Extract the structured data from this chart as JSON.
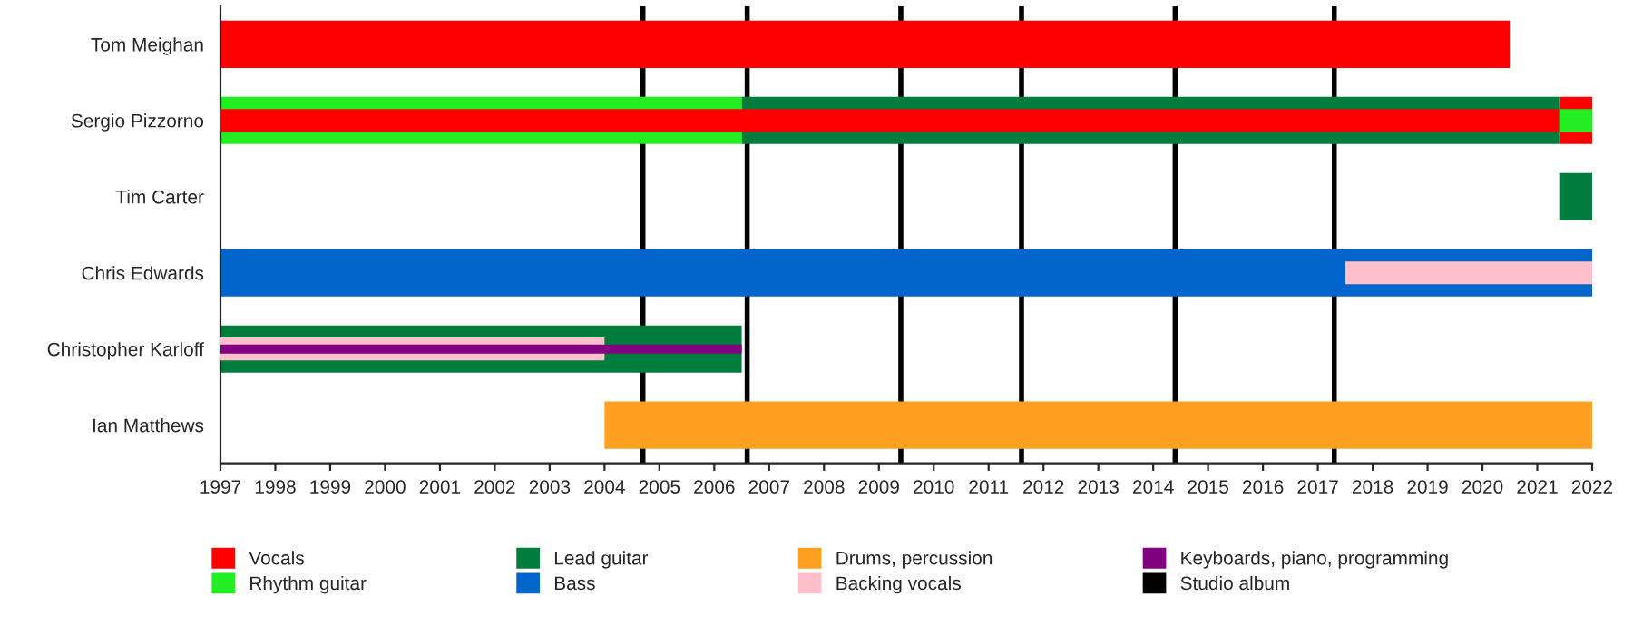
{
  "chart_data": {
    "type": "bar",
    "orientation": "horizontal",
    "categories": [
      "Tom Meighan",
      "Sergio Pizzorno",
      "Tim Carter",
      "Chris Edwards",
      "Christopher Karloff",
      "Ian Matthews"
    ],
    "series": [
      {
        "name": "Vocals",
        "color": "#ff0000",
        "base": [
          1997,
          2021.4,
          null,
          null,
          null,
          null
        ],
        "values": [
          23.5,
          0.6,
          null,
          null,
          null,
          null
        ]
      },
      {
        "name": "Rhythm guitar",
        "color": "#22ee22",
        "base": [
          null,
          1997,
          null,
          null,
          null,
          null
        ],
        "values": [
          null,
          9.5,
          null,
          null,
          null,
          null
        ]
      },
      {
        "name": "Lead guitar",
        "color": "#007c3c",
        "base": [
          null,
          2006.5,
          2021.4,
          null,
          1997,
          null
        ],
        "values": [
          null,
          14.9,
          0.6,
          null,
          9.5,
          null
        ]
      },
      {
        "name": "Bass",
        "color": "#0066cc",
        "base": [
          null,
          null,
          null,
          1997,
          null,
          null
        ],
        "values": [
          null,
          null,
          null,
          25,
          null,
          null
        ]
      },
      {
        "name": "Drums, percussion",
        "color": "#ffa020",
        "base": [
          null,
          null,
          null,
          null,
          null,
          2004
        ],
        "values": [
          null,
          null,
          null,
          null,
          null,
          18
        ]
      },
      {
        "color": "#ff0000",
        "base": [
          null,
          1997,
          null,
          null,
          null,
          null
        ],
        "values": [
          null,
          24.4,
          null,
          null,
          null,
          null
        ]
      },
      {
        "color": "#22ee22",
        "base": [
          null,
          2021.4,
          null,
          null,
          null,
          null
        ],
        "values": [
          null,
          0.6,
          null,
          null,
          null,
          null
        ]
      },
      {
        "name": "Backing vocals",
        "color": "#ffc0cb",
        "base": [
          null,
          null,
          null,
          2017.5,
          1997,
          null
        ],
        "values": [
          null,
          null,
          null,
          4.5,
          7,
          null
        ]
      },
      {
        "name": "Keyboards, piano, programming",
        "color": "#800080",
        "base": [
          null,
          null,
          null,
          null,
          1997,
          null
        ],
        "values": [
          null,
          null,
          null,
          null,
          9.5,
          null
        ]
      }
    ],
    "ref_lines": [
      {
        "axis": "x",
        "value": 2004.7,
        "label": "Studio album",
        "color": "#000000"
      },
      {
        "axis": "x",
        "value": 2006.6,
        "color": "#000000"
      },
      {
        "axis": "x",
        "value": 2009.4,
        "color": "#000000"
      },
      {
        "axis": "x",
        "value": 2011.6,
        "color": "#000000"
      },
      {
        "axis": "x",
        "value": 2014.4,
        "color": "#000000"
      },
      {
        "axis": "x",
        "value": 2017.3,
        "color": "#000000"
      }
    ],
    "xlim": [
      1997,
      2022
    ],
    "xticks": [
      1997,
      1998,
      1999,
      2000,
      2001,
      2002,
      2003,
      2004,
      2005,
      2006,
      2007,
      2008,
      2009,
      2010,
      2011,
      2012,
      2013,
      2014,
      2015,
      2016,
      2017,
      2018,
      2019,
      2020,
      2021,
      2022
    ],
    "grid": false,
    "legend": "bottom"
  }
}
